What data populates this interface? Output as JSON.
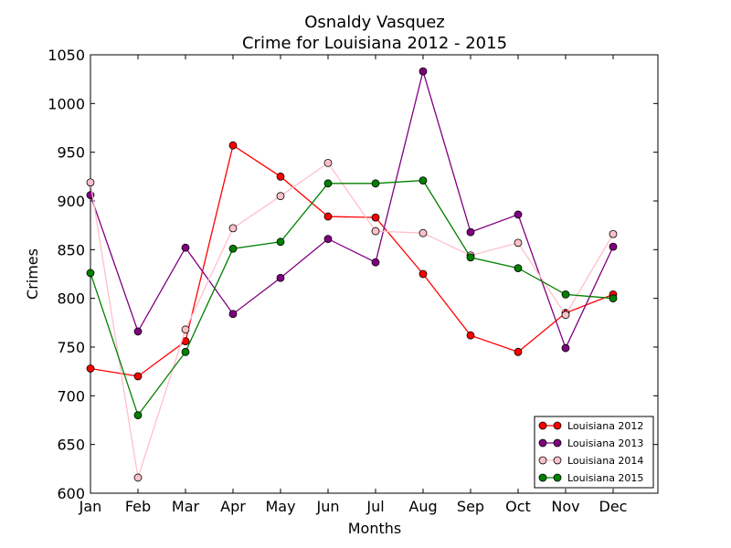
{
  "chart_data": {
    "type": "line",
    "title_line1": "Osnaldy Vasquez",
    "title_line2": "Crime for Louisiana 2012 - 2015",
    "xlabel": "Months",
    "ylabel": "Crimes",
    "categories": [
      "Jan",
      "Feb",
      "Mar",
      "Apr",
      "May",
      "Jun",
      "Jul",
      "Aug",
      "Sep",
      "Oct",
      "Nov",
      "Dec"
    ],
    "ylim": [
      600,
      1050
    ],
    "yticks": [
      600,
      650,
      700,
      750,
      800,
      850,
      900,
      950,
      1000,
      1050
    ],
    "grid": false,
    "legend_position": "lower-right",
    "series": [
      {
        "name": "Louisiana 2012",
        "color": "#ff0000",
        "values": [
          728,
          720,
          756,
          957,
          925,
          884,
          883,
          825,
          762,
          745,
          785,
          804
        ]
      },
      {
        "name": "Louisiana 2013",
        "color": "#800080",
        "values": [
          906,
          766,
          852,
          784,
          821,
          861,
          837,
          1033,
          868,
          886,
          749,
          853
        ]
      },
      {
        "name": "Louisiana 2014",
        "color": "#ffc0cb",
        "values": [
          919,
          616,
          768,
          872,
          905,
          939,
          869,
          867,
          844,
          857,
          783,
          866
        ]
      },
      {
        "name": "Louisiana 2015",
        "color": "#008000",
        "values": [
          826,
          680,
          745,
          851,
          858,
          918,
          918,
          921,
          842,
          831,
          804,
          800
        ]
      }
    ]
  }
}
